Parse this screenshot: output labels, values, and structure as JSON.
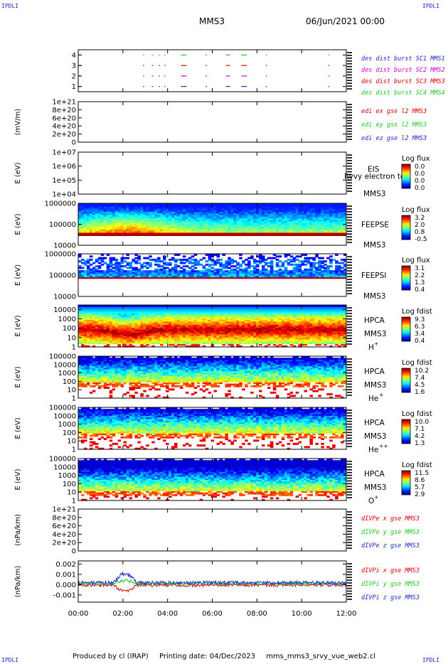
{
  "header": {
    "left_tag": "IPDLI",
    "right_tag": "IPDLI",
    "title": "MMS3",
    "date": "06/Jun/2021 00:00"
  },
  "footer": {
    "produced": "Produced by cl (IRAP)",
    "printing": "Printing date: 04/Dec/2023",
    "file": "mms_mms3_srvy_vue_web2.cl"
  },
  "colors": {
    "blue": "#1a2fc8",
    "magenta": "#cc00cc",
    "red": "#dd0000",
    "green": "#22cc22",
    "orange": "#ff8800"
  },
  "chart_data": {
    "type": "stacked-panels",
    "x_range": [
      "00:00",
      "12:00"
    ],
    "x_ticks": [
      "00:00",
      "02:00",
      "04:00",
      "06:00",
      "08:00",
      "10:00",
      "12:00"
    ],
    "panels": [
      {
        "id": "burst",
        "kind": "events",
        "y_ticks": [
          "1",
          "2",
          "3",
          "4"
        ],
        "ylim": [
          0.5,
          4.5
        ],
        "legend": [
          {
            "text": "des dist burst SC1 MMS1",
            "color": "blue"
          },
          {
            "text": "des dist burst SC2 MMS2",
            "color": "magenta"
          },
          {
            "text": "des dist burst SC3 MMS3",
            "color": "red"
          },
          {
            "text": "des dist burst SC4 MMS4",
            "color": "green"
          }
        ],
        "series": [
          {
            "level": 4,
            "color": "green",
            "segments": [
              [
                0.0,
                0.15
              ],
              [
                2.9,
                2.95
              ],
              [
                3.3,
                3.36
              ],
              [
                3.6,
                3.65
              ],
              [
                3.85,
                3.9
              ],
              [
                4.6,
                4.85
              ],
              [
                5.7,
                5.76
              ],
              [
                6.6,
                6.8
              ],
              [
                7.3,
                7.55
              ],
              [
                8.4,
                8.45
              ],
              [
                11.2,
                11.25
              ]
            ]
          },
          {
            "level": 3,
            "color": "red",
            "segments": [
              [
                0.0,
                0.15
              ],
              [
                2.9,
                2.95
              ],
              [
                3.3,
                3.36
              ],
              [
                3.6,
                3.65
              ],
              [
                3.85,
                3.9
              ],
              [
                4.6,
                4.85
              ],
              [
                5.7,
                5.76
              ],
              [
                6.6,
                6.8
              ],
              [
                7.3,
                7.55
              ],
              [
                8.4,
                8.45
              ],
              [
                11.2,
                11.25
              ]
            ]
          },
          {
            "level": 2,
            "color": "magenta",
            "segments": [
              [
                0.0,
                0.15
              ],
              [
                2.9,
                2.95
              ],
              [
                3.3,
                3.36
              ],
              [
                3.6,
                3.65
              ],
              [
                3.85,
                3.9
              ],
              [
                4.6,
                4.85
              ],
              [
                5.7,
                5.76
              ],
              [
                6.6,
                6.8
              ],
              [
                7.3,
                7.55
              ],
              [
                8.4,
                8.45
              ],
              [
                11.2,
                11.25
              ]
            ]
          },
          {
            "level": 1,
            "color": "blue",
            "segments": [
              [
                0.0,
                0.15
              ],
              [
                2.9,
                2.95
              ],
              [
                3.3,
                3.36
              ],
              [
                3.6,
                3.65
              ],
              [
                3.85,
                3.9
              ],
              [
                4.6,
                4.85
              ],
              [
                5.7,
                5.76
              ],
              [
                6.6,
                6.8
              ],
              [
                7.3,
                7.55
              ],
              [
                8.4,
                8.45
              ],
              [
                11.2,
                11.25
              ]
            ]
          }
        ]
      },
      {
        "id": "edi",
        "kind": "empty-lines",
        "ylabel": "(mV/m)",
        "y_ticks": [
          "0",
          "2e+20",
          "4e+20",
          "6e+20",
          "8e+20",
          "1e+21"
        ],
        "ylim": [
          0,
          1e+21
        ],
        "legend": [
          {
            "text": "edi ex gse l2 MMS3",
            "color": "red"
          },
          {
            "text": "edi ey gse l2 MMS3",
            "color": "green"
          },
          {
            "text": "edi ez gse l2 MMS3",
            "color": "blue"
          }
        ]
      },
      {
        "id": "eis",
        "kind": "empty-spectrogram",
        "ylabel": "E (eV)",
        "log": true,
        "y_ticks": [
          "1e+04",
          "1e+05",
          "1e+06",
          "1e+07"
        ],
        "ylim": [
          10000.0,
          10000000.0
        ],
        "instrument": "EIS",
        "species_text": "I\\vvy electron to",
        "sc": "MMS3",
        "cbar_title": "Log flux",
        "cbar_ticks": [
          "0.0",
          "0.0",
          "0.0",
          "0.0"
        ]
      },
      {
        "id": "feepse",
        "kind": "spectrogram",
        "ylabel": "E (eV)",
        "log": true,
        "y_ticks": [
          "10000",
          "100000",
          "1000000"
        ],
        "ylim": [
          10000,
          1000000
        ],
        "instrument": "FEEPSE",
        "sc": "MMS3",
        "cbar_title": "Log flux",
        "cbar_ticks": [
          "3.2",
          "2.0",
          "0.8",
          "-0.5"
        ],
        "profile": "feepse"
      },
      {
        "id": "feepsi",
        "kind": "spectrogram",
        "ylabel": "E (eV)",
        "log": true,
        "y_ticks": [
          "10000",
          "100000",
          "1000000"
        ],
        "ylim": [
          10000,
          1000000
        ],
        "instrument": "FEEPSI",
        "sc": "MMS3",
        "cbar_title": "Log flux",
        "cbar_ticks": [
          "3.1",
          "2.2",
          "1.3",
          "0.4"
        ],
        "profile": "feepsi"
      },
      {
        "id": "hpca_h",
        "kind": "spectrogram",
        "ylabel": "E (eV)",
        "log": true,
        "y_ticks": [
          "1",
          "10",
          "100",
          "1000",
          "10000"
        ],
        "ylim": [
          1,
          30000
        ],
        "instrument": "HPCA",
        "sc": "MMS3",
        "species": "H",
        "charge": "+",
        "cbar_title": "Log fdist",
        "cbar_ticks": [
          "9.3",
          "6.3",
          "3.4",
          "0.4"
        ],
        "profile": "hpca_h"
      },
      {
        "id": "hpca_he1",
        "kind": "spectrogram",
        "ylabel": "E (eV)",
        "log": true,
        "y_ticks": [
          "1",
          "10",
          "100",
          "1000",
          "10000",
          "100000"
        ],
        "ylim": [
          1,
          100000
        ],
        "instrument": "HPCA",
        "sc": "MMS3",
        "species": "He",
        "charge": "+",
        "cbar_title": "Log fdist",
        "cbar_ticks": [
          "10.2",
          "7.4",
          "4.5",
          "1.6"
        ],
        "profile": "hpca_he"
      },
      {
        "id": "hpca_he2",
        "kind": "spectrogram",
        "ylabel": "E (eV)",
        "log": true,
        "y_ticks": [
          "1",
          "10",
          "100",
          "1000",
          "10000",
          "100000"
        ],
        "ylim": [
          1,
          100000
        ],
        "instrument": "HPCA",
        "sc": "MMS3",
        "species": "He",
        "charge": "++",
        "cbar_title": "Log fdist",
        "cbar_ticks": [
          "10.0",
          "7.1",
          "4.2",
          "1.3"
        ],
        "profile": "hpca_hepp"
      },
      {
        "id": "hpca_o",
        "kind": "spectrogram",
        "ylabel": "E (eV)",
        "log": true,
        "y_ticks": [
          "1",
          "10",
          "100",
          "1000",
          "10000",
          "100000"
        ],
        "ylim": [
          1,
          100000
        ],
        "instrument": "HPCA",
        "sc": "MMS3",
        "species": "O",
        "charge": "+",
        "cbar_title": "Log fdist",
        "cbar_ticks": [
          "11.5",
          "8.6",
          "5.7",
          "2.9"
        ],
        "profile": "hpca_o"
      },
      {
        "id": "dpe",
        "kind": "empty-lines",
        "ylabel": "(nPa/km)",
        "y_ticks": [
          "0",
          "2e+20",
          "4e+20",
          "6e+20",
          "8e+20",
          "1e+21"
        ],
        "ylim": [
          0,
          1e+21
        ],
        "legend": [
          {
            "text": "dIVPe x gse MMS3",
            "color": "red"
          },
          {
            "text": "dIVPe y gse MMS3",
            "color": "green"
          },
          {
            "text": "dIVPe z gse MMS3",
            "color": "blue"
          }
        ]
      },
      {
        "id": "dpi",
        "kind": "noise-lines",
        "ylabel": "(nPa/km)",
        "y_ticks": [
          "-0.001",
          "0.000",
          "0.001",
          "0.002"
        ],
        "ylim": [
          -0.0017,
          0.0023
        ],
        "legend": [
          {
            "text": "dIVPi x gse MMS3",
            "color": "red"
          },
          {
            "text": "dIVPi y gse MMS3",
            "color": "green"
          },
          {
            "text": "dIVPi z gse MMS3",
            "color": "blue"
          }
        ]
      }
    ]
  }
}
